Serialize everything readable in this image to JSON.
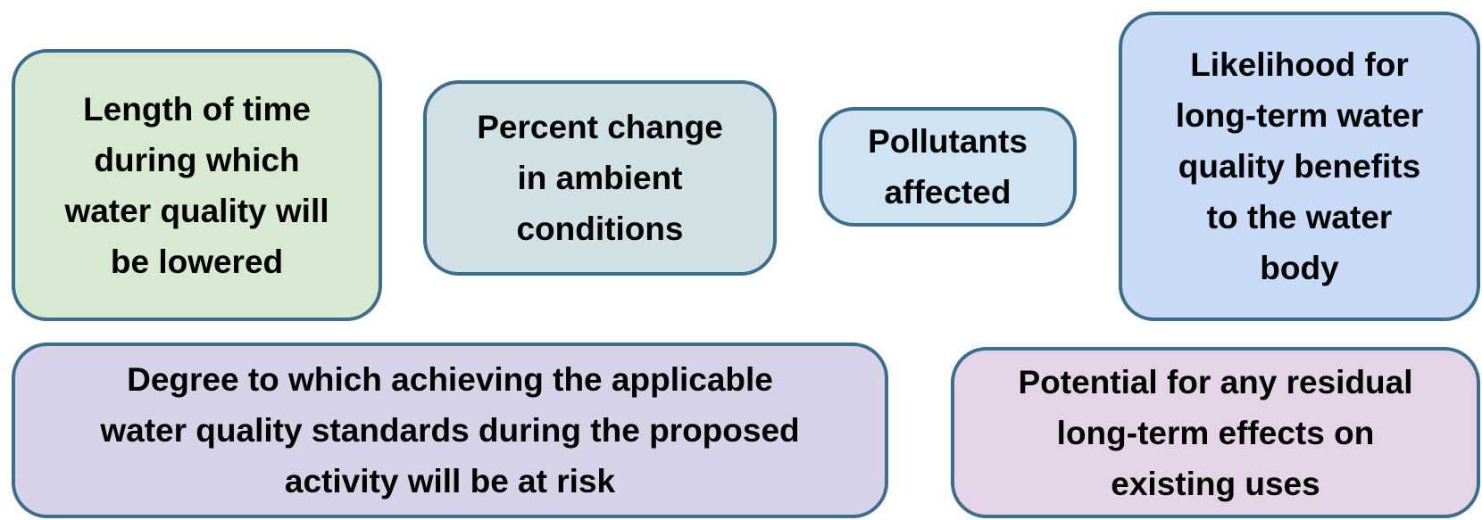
{
  "nodes": [
    {
      "lines": [
        "Length of time",
        "during which",
        "water quality will",
        "be lowered"
      ]
    },
    {
      "lines": [
        "Percent change",
        "in ambient",
        "conditions"
      ]
    },
    {
      "lines": [
        "Pollutants",
        "affected"
      ]
    },
    {
      "lines": [
        "Likelihood for",
        "long-term water",
        "quality benefits",
        "to the water",
        "body"
      ]
    },
    {
      "lines": [
        "Degree to which achieving the applicable",
        "water quality standards during the proposed",
        "activity will be at risk"
      ]
    },
    {
      "lines": [
        "Potential for any residual",
        "long-term effects on",
        "existing uses"
      ]
    }
  ]
}
